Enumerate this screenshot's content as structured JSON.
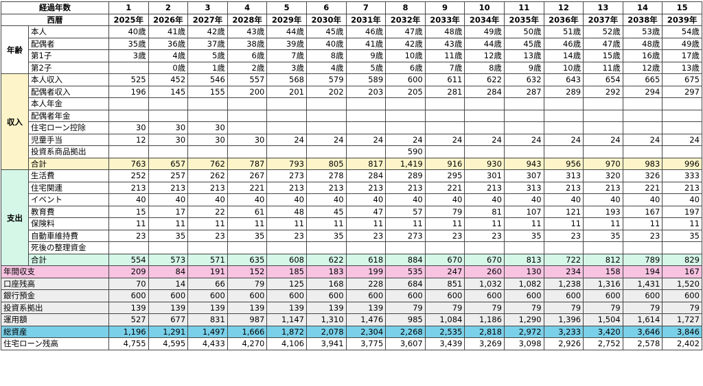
{
  "header": {
    "elapsed_label": "経過年数",
    "calendar_label": "西暦",
    "years_index": [
      "1",
      "2",
      "3",
      "4",
      "5",
      "6",
      "7",
      "8",
      "9",
      "10",
      "11",
      "12",
      "13",
      "14",
      "15"
    ],
    "years": [
      "2025年",
      "2026年",
      "2027年",
      "2028年",
      "2029年",
      "2030年",
      "2031年",
      "2032年",
      "2033年",
      "2034年",
      "2035年",
      "2036年",
      "2037年",
      "2038年",
      "2039年"
    ]
  },
  "sections": {
    "age": {
      "label": "年齢",
      "rows": [
        {
          "label": "本人",
          "values": [
            "40歳",
            "41歳",
            "42歳",
            "43歳",
            "44歳",
            "45歳",
            "46歳",
            "47歳",
            "48歳",
            "49歳",
            "50歳",
            "51歳",
            "52歳",
            "53歳",
            "54歳"
          ]
        },
        {
          "label": "配偶者",
          "values": [
            "35歳",
            "36歳",
            "37歳",
            "38歳",
            "39歳",
            "40歳",
            "41歳",
            "42歳",
            "43歳",
            "44歳",
            "45歳",
            "46歳",
            "47歳",
            "48歳",
            "49歳"
          ]
        },
        {
          "label": "第1子",
          "values": [
            "3歳",
            "4歳",
            "5歳",
            "6歳",
            "7歳",
            "8歳",
            "9歳",
            "10歳",
            "11歳",
            "12歳",
            "13歳",
            "14歳",
            "15歳",
            "16歳",
            "17歳"
          ]
        },
        {
          "label": "第2子",
          "values": [
            "",
            "0歳",
            "1歳",
            "2歳",
            "3歳",
            "4歳",
            "5歳",
            "6歳",
            "7歳",
            "8歳",
            "9歳",
            "10歳",
            "11歳",
            "12歳",
            "13歳"
          ]
        }
      ]
    },
    "income": {
      "label": "収入",
      "rows": [
        {
          "label": "本人収入",
          "values": [
            "525",
            "452",
            "546",
            "557",
            "568",
            "579",
            "589",
            "600",
            "611",
            "622",
            "632",
            "643",
            "654",
            "665",
            "675"
          ]
        },
        {
          "label": "配偶者収入",
          "values": [
            "196",
            "145",
            "155",
            "200",
            "201",
            "202",
            "203",
            "205",
            "281",
            "284",
            "287",
            "289",
            "292",
            "294",
            "297"
          ]
        },
        {
          "label": "本人年金",
          "values": [
            "",
            "",
            "",
            "",
            "",
            "",
            "",
            "",
            "",
            "",
            "",
            "",
            "",
            "",
            ""
          ]
        },
        {
          "label": "配偶者年金",
          "values": [
            "",
            "",
            "",
            "",
            "",
            "",
            "",
            "",
            "",
            "",
            "",
            "",
            "",
            "",
            ""
          ]
        },
        {
          "label": "住宅ローン控除",
          "values": [
            "30",
            "30",
            "30",
            "",
            "",
            "",
            "",
            "",
            "",
            "",
            "",
            "",
            "",
            "",
            ""
          ]
        },
        {
          "label": "児童手当",
          "values": [
            "12",
            "30",
            "30",
            "30",
            "24",
            "24",
            "24",
            "24",
            "24",
            "24",
            "24",
            "24",
            "24",
            "24",
            "24"
          ]
        },
        {
          "label": "投資系商品拠出",
          "values": [
            "",
            "",
            "",
            "",
            "",
            "",
            "",
            "590",
            "",
            "",
            "",
            "",
            "",
            "",
            ""
          ]
        }
      ],
      "total": {
        "label": "合計",
        "values": [
          "763",
          "657",
          "762",
          "787",
          "793",
          "805",
          "817",
          "1,419",
          "916",
          "930",
          "943",
          "956",
          "970",
          "983",
          "996"
        ]
      }
    },
    "expense": {
      "label": "支出",
      "rows": [
        {
          "label": "生活費",
          "values": [
            "252",
            "257",
            "262",
            "267",
            "273",
            "278",
            "284",
            "289",
            "295",
            "301",
            "307",
            "313",
            "320",
            "326",
            "333"
          ]
        },
        {
          "label": "住宅関連",
          "values": [
            "213",
            "213",
            "213",
            "221",
            "213",
            "213",
            "213",
            "213",
            "221",
            "213",
            "313",
            "213",
            "213",
            "221",
            "213"
          ]
        },
        {
          "label": "イベント",
          "values": [
            "40",
            "40",
            "40",
            "40",
            "40",
            "40",
            "40",
            "40",
            "40",
            "40",
            "40",
            "40",
            "40",
            "40",
            "40"
          ]
        },
        {
          "label": "教育費",
          "values": [
            "15",
            "17",
            "22",
            "61",
            "48",
            "45",
            "47",
            "57",
            "79",
            "81",
            "107",
            "121",
            "193",
            "167",
            "197"
          ]
        },
        {
          "label": "保険料",
          "values": [
            "11",
            "11",
            "11",
            "11",
            "11",
            "11",
            "11",
            "11",
            "11",
            "11",
            "11",
            "11",
            "11",
            "11",
            "11"
          ]
        },
        {
          "label": "自動車維持費",
          "values": [
            "23",
            "35",
            "23",
            "35",
            "23",
            "35",
            "23",
            "273",
            "23",
            "23",
            "35",
            "23",
            "35",
            "23",
            "35"
          ]
        },
        {
          "label": "死後の整理資金",
          "values": [
            "",
            "",
            "",
            "",
            "",
            "",
            "",
            "",
            "",
            "",
            "",
            "",
            "",
            "",
            ""
          ]
        }
      ],
      "total": {
        "label": "合計",
        "values": [
          "554",
          "573",
          "571",
          "635",
          "608",
          "622",
          "618",
          "884",
          "670",
          "670",
          "813",
          "722",
          "812",
          "789",
          "829"
        ]
      }
    },
    "summary": [
      {
        "key": "annual",
        "style": "pink",
        "label": "年間収支",
        "values": [
          "209",
          "84",
          "191",
          "152",
          "185",
          "183",
          "199",
          "535",
          "247",
          "260",
          "130",
          "234",
          "158",
          "194",
          "167"
        ]
      },
      {
        "key": "account",
        "style": "gray",
        "label": "口座残高",
        "values": [
          "70",
          "14",
          "66",
          "79",
          "125",
          "168",
          "228",
          "684",
          "851",
          "1,032",
          "1,082",
          "1,238",
          "1,316",
          "1,431",
          "1,520"
        ]
      },
      {
        "key": "bank",
        "style": "gray",
        "label": "銀行預金",
        "values": [
          "600",
          "600",
          "600",
          "600",
          "600",
          "600",
          "600",
          "600",
          "600",
          "600",
          "600",
          "600",
          "600",
          "600",
          "600"
        ]
      },
      {
        "key": "invest",
        "style": "gray",
        "label": "投資系拠出",
        "values": [
          "139",
          "139",
          "139",
          "139",
          "139",
          "139",
          "139",
          "79",
          "79",
          "79",
          "79",
          "79",
          "79",
          "79",
          "79"
        ]
      },
      {
        "key": "managed",
        "style": "gray",
        "label": "運用額",
        "values": [
          "527",
          "677",
          "831",
          "987",
          "1,147",
          "1,310",
          "1,476",
          "985",
          "1,084",
          "1,186",
          "1,290",
          "1,396",
          "1,504",
          "1,614",
          "1,727"
        ]
      },
      {
        "key": "assets",
        "style": "blue",
        "label": "総資産",
        "values": [
          "1,196",
          "1,291",
          "1,497",
          "1,666",
          "1,872",
          "2,078",
          "2,304",
          "2,268",
          "2,535",
          "2,818",
          "2,972",
          "3,233",
          "3,420",
          "3,646",
          "3,846"
        ]
      },
      {
        "key": "loan",
        "style": "none",
        "label": "住宅ローン残高",
        "values": [
          "4,755",
          "4,595",
          "4,433",
          "4,270",
          "4,106",
          "3,941",
          "3,775",
          "3,607",
          "3,439",
          "3,269",
          "3,098",
          "2,926",
          "2,752",
          "2,578",
          "2,402"
        ]
      }
    ]
  }
}
